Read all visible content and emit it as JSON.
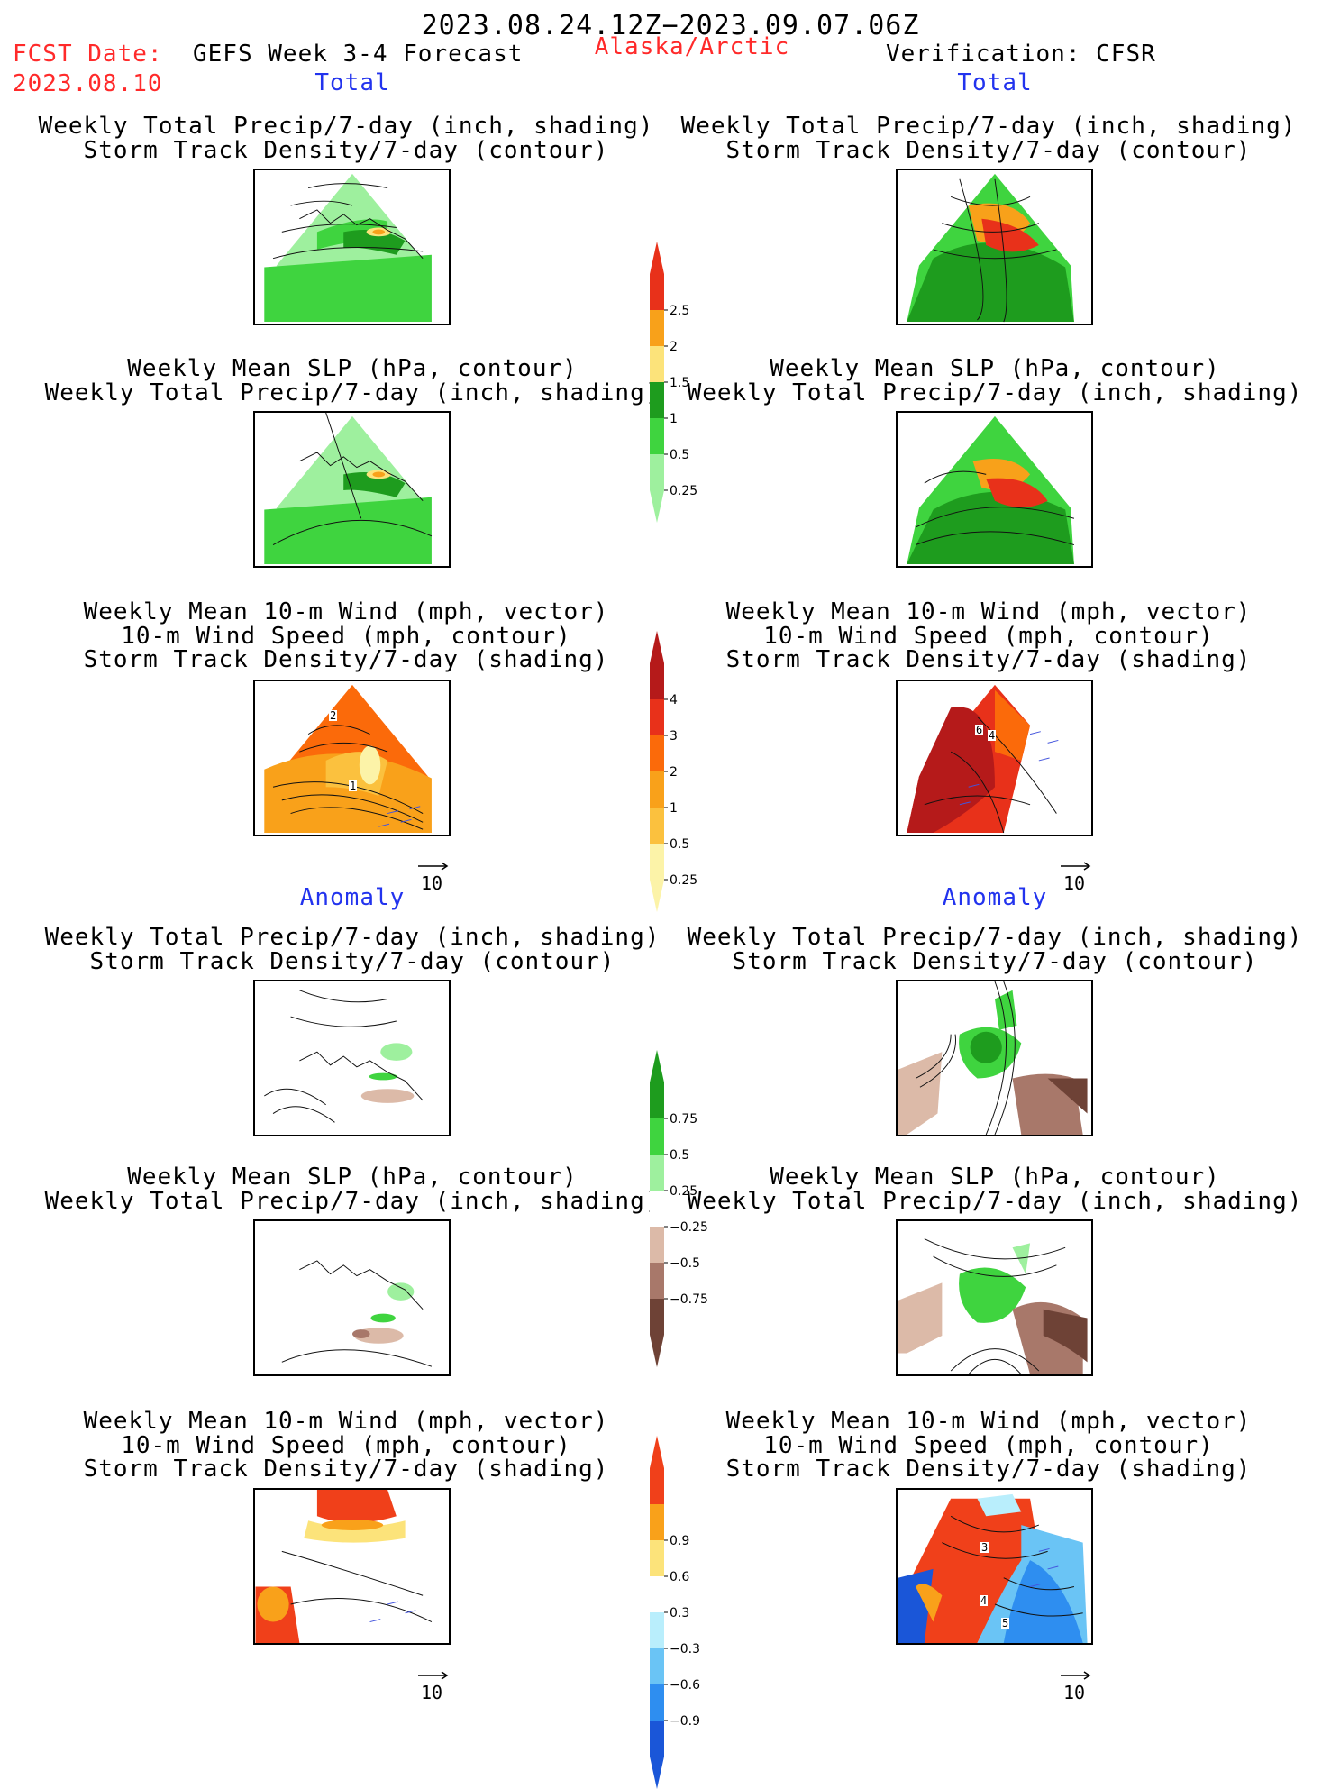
{
  "header": {
    "date_range": "2023.08.24.12Z−2023.09.07.06Z",
    "fcst_label": "FCST Date:",
    "fcst_date": "2023.08.10",
    "forecast_title": "GEFS Week 3-4 Forecast",
    "region": "Alaska/Arctic",
    "verification": "Verification: CFSR"
  },
  "sections": {
    "total_left": "Total",
    "total_right": "Total",
    "anomaly_left": "Anomaly",
    "anomaly_right": "Anomaly"
  },
  "panel_titles": {
    "precip_storm": "Weekly Total Precip/7-day (inch, shading)\nStorm Track Density/7-day (contour)",
    "slp_precip": "Weekly Mean SLP (hPa, contour)\nWeekly Total Precip/7-day (inch, shading)",
    "wind_storm": "Weekly Mean 10-m Wind (mph, vector)\n10-m Wind Speed (mph, contour)\nStorm Track Density/7-day (shading)"
  },
  "vector_reference": "10",
  "colorbars": {
    "precip_total": {
      "labels": [
        "2.5",
        "2",
        "1.5",
        "1",
        "0.5",
        "0.25"
      ],
      "colors": [
        "#e8311a",
        "#f8a11a",
        "#fce37a",
        "#1e9c1e",
        "#3fd43f",
        "#9ef09e"
      ]
    },
    "storm_total": {
      "labels": [
        "4",
        "3",
        "2",
        "1",
        "0.5",
        "0.25"
      ],
      "colors": [
        "#b51a1a",
        "#e8311a",
        "#fb6a0a",
        "#f9a11a",
        "#fbc13e",
        "#fcf3a8"
      ]
    },
    "precip_anom": {
      "labels": [
        "0.75",
        "0.5",
        "0.25",
        "−0.25",
        "−0.5",
        "−0.75"
      ],
      "colors": [
        "#1e9c1e",
        "#3fd43f",
        "#9ef09e",
        "#ffffff",
        "#dcbaa8",
        "#a8786a",
        "#6e4236"
      ]
    },
    "storm_anom": {
      "labels": [
        "0.9",
        "0.6",
        "0.3",
        "−0.3",
        "−0.6",
        "−0.9"
      ],
      "colors": [
        "#f0401a",
        "#f9a11a",
        "#fce37a",
        "#ffffff",
        "#b9eefc",
        "#6ac4f5",
        "#2e8ef0",
        "#1a56d8"
      ]
    }
  },
  "panel_labels": {
    "left_wind_total": [
      "2",
      "1"
    ],
    "right_wind_total": [
      "6",
      "4"
    ],
    "right_wind_anom": [
      "3",
      "4",
      "5"
    ]
  }
}
